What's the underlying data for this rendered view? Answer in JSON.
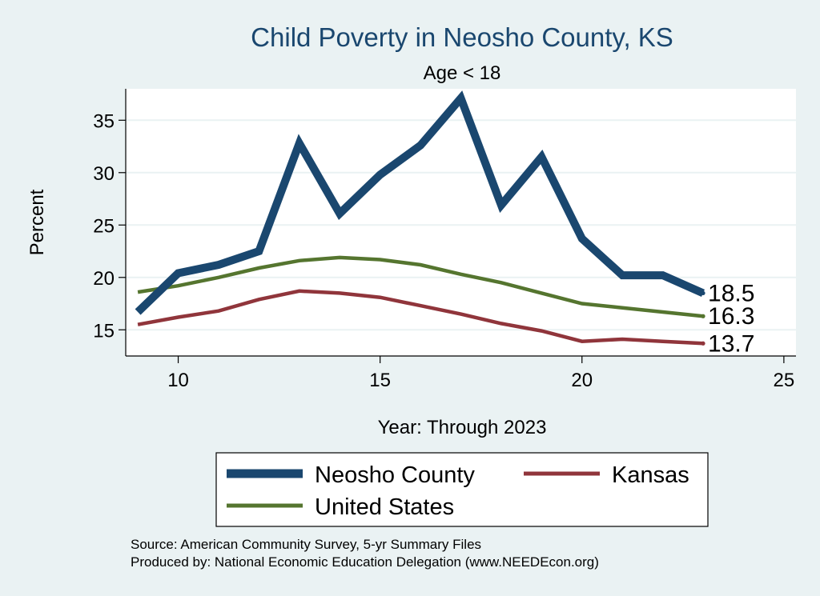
{
  "chart_data": {
    "type": "line",
    "title": "Child Poverty in Neosho County, KS",
    "subtitle": "Age < 18",
    "xlabel": "Year: Through 2023",
    "ylabel": "Percent",
    "xlim": [
      8.7,
      25.3
    ],
    "ylim": [
      12.5,
      38.0
    ],
    "xticks": [
      10,
      15,
      20,
      25
    ],
    "yticks": [
      15,
      20,
      25,
      30,
      35
    ],
    "grid": true,
    "legend_position": "bottom",
    "x": [
      9,
      10,
      11,
      12,
      13,
      14,
      15,
      16,
      17,
      18,
      19,
      20,
      21,
      22,
      23
    ],
    "series": [
      {
        "name": "Neosho County",
        "color": "#1a476f",
        "width": "thick",
        "values": [
          16.7,
          20.4,
          21.2,
          22.5,
          32.8,
          26.1,
          29.8,
          32.6,
          37.1,
          26.9,
          31.5,
          23.7,
          20.2,
          20.2,
          18.5
        ],
        "end_label": "18.5"
      },
      {
        "name": "Kansas",
        "color": "#90353b",
        "width": "medium",
        "values": [
          15.5,
          16.2,
          16.8,
          17.9,
          18.7,
          18.5,
          18.1,
          17.3,
          16.5,
          15.6,
          14.9,
          13.9,
          14.1,
          13.9,
          13.7
        ],
        "end_label": "13.7"
      },
      {
        "name": "United States",
        "color": "#55752f",
        "width": "medium",
        "values": [
          18.6,
          19.2,
          20.0,
          20.9,
          21.6,
          21.9,
          21.7,
          21.2,
          20.3,
          19.5,
          18.5,
          17.5,
          17.1,
          16.7,
          16.3
        ],
        "end_label": "16.3"
      }
    ],
    "legend_entries": [
      "Neosho County",
      "Kansas",
      "United States"
    ],
    "source_lines": [
      "Source: American Community Survey, 5-yr Summary Files",
      "Produced by: National Economic Education Delegation (www.NEEDEcon.org)"
    ]
  }
}
